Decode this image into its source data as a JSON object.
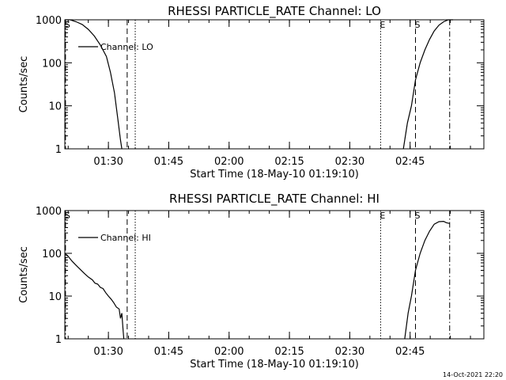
{
  "chart_data": [
    {
      "type": "line",
      "title": "RHESSI PARTICLE_RATE Channel: LO",
      "xlabel": "Start Time (18-May-10 01:19:10)",
      "ylabel": "Counts/sec",
      "yscale": "log",
      "ylim": [
        1,
        1000
      ],
      "xlim": [
        "01:19:10",
        "03:03:20"
      ],
      "xticks": [
        "01:30",
        "01:45",
        "02:00",
        "02:15",
        "02:30",
        "02:45"
      ],
      "yticks": [
        "1",
        "10",
        "100",
        "1000"
      ],
      "grid": false,
      "legend": {
        "position": "top-left",
        "entries": [
          "Channel: LO"
        ]
      },
      "markers": [
        {
          "label": "S",
          "time": "01:19:20",
          "style": "dash-dot"
        },
        {
          "label": "",
          "time": "01:34:40",
          "style": "dashed"
        },
        {
          "label": "",
          "time": "01:36:40",
          "style": "dotted"
        },
        {
          "label": "E",
          "time": "02:37:40",
          "style": "dotted"
        },
        {
          "label": "S",
          "time": "02:46:20",
          "style": "dashed"
        },
        {
          "label": "",
          "time": "02:54:50",
          "style": "dash-dot"
        }
      ],
      "series": [
        {
          "name": "Channel: LO",
          "segments": [
            {
              "x": [
                "01:19:10",
                "01:20:30",
                "01:22:00",
                "01:23:30",
                "01:25:00",
                "01:26:30",
                "01:28:00",
                "01:29:30",
                "01:30:30",
                "01:31:30",
                "01:32:20",
                "01:33:00",
                "01:33:20"
              ],
              "y": [
                1000,
                1000,
                900,
                780,
                600,
                420,
                260,
                140,
                60,
                20,
                5,
                1.6,
                1
              ]
            },
            {
              "x": [
                "02:43:20",
                "02:44:20",
                "02:45:20",
                "02:46:20",
                "02:47:30",
                "02:48:40",
                "02:49:50",
                "02:51:00",
                "02:52:10",
                "02:53:20",
                "02:54:30",
                "02:55:40"
              ],
              "y": [
                1,
                4,
                10,
                40,
                100,
                200,
                350,
                550,
                750,
                900,
                1000,
                1000
              ]
            }
          ]
        }
      ]
    },
    {
      "type": "line",
      "title": "RHESSI PARTICLE_RATE Channel: HI",
      "xlabel": "Start Time (18-May-10 01:19:10)",
      "ylabel": "Counts/sec",
      "yscale": "log",
      "ylim": [
        1,
        1000
      ],
      "xlim": [
        "01:19:10",
        "03:03:20"
      ],
      "xticks": [
        "01:30",
        "01:45",
        "02:00",
        "02:15",
        "02:30",
        "02:45"
      ],
      "yticks": [
        "1",
        "10",
        "100",
        "1000"
      ],
      "grid": false,
      "legend": {
        "position": "top-left",
        "entries": [
          "Channel: HI"
        ]
      },
      "markers": [
        {
          "label": "S",
          "time": "01:19:20",
          "style": "dash-dot"
        },
        {
          "label": "",
          "time": "01:34:40",
          "style": "dashed"
        },
        {
          "label": "",
          "time": "01:36:40",
          "style": "dotted"
        },
        {
          "label": "E",
          "time": "02:37:40",
          "style": "dotted"
        },
        {
          "label": "S",
          "time": "02:46:20",
          "style": "dashed"
        },
        {
          "label": "",
          "time": "02:54:50",
          "style": "dash-dot"
        }
      ],
      "series": [
        {
          "name": "Channel: HI",
          "segments": [
            {
              "x": [
                "01:19:10",
                "01:20:00",
                "01:21:00",
                "01:22:00",
                "01:23:00",
                "01:24:00",
                "01:25:00",
                "01:26:00",
                "01:26:40",
                "01:27:20",
                "01:28:00",
                "01:28:40",
                "01:29:20",
                "01:30:00",
                "01:30:40",
                "01:31:20",
                "01:32:00",
                "01:32:40",
                "01:33:00",
                "01:33:20",
                "01:33:40",
                "01:33:50"
              ],
              "y": [
                100,
                85,
                65,
                52,
                42,
                34,
                28,
                24,
                20,
                19,
                16,
                15,
                12,
                10,
                8.5,
                7,
                5.5,
                5,
                3,
                4,
                1.5,
                1
              ]
            },
            {
              "x": [
                "02:43:40",
                "02:44:30",
                "02:45:20",
                "02:46:20",
                "02:47:30",
                "02:48:40",
                "02:49:50",
                "02:51:00",
                "02:52:10",
                "02:53:20",
                "02:54:00",
                "02:54:50"
              ],
              "y": [
                1,
                4,
                10,
                40,
                100,
                200,
                330,
                480,
                550,
                560,
                520,
                500
              ]
            }
          ]
        }
      ]
    }
  ],
  "footer": {
    "timestamp": "14-Oct-2021 22:20"
  }
}
